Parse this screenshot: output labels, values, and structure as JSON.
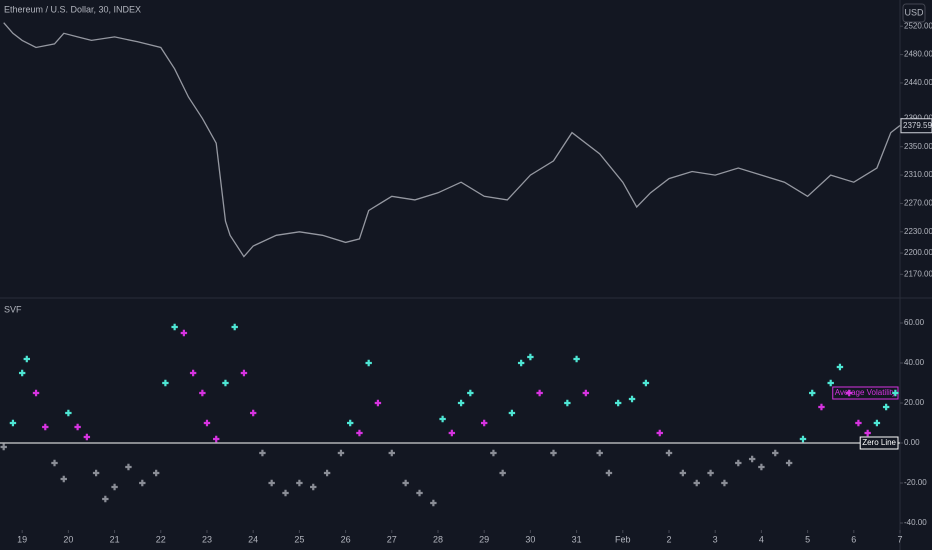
{
  "header": {
    "title": "Ethereum / U.S. Dollar, 30, INDEX",
    "currency": "USD"
  },
  "chart_data": [
    {
      "type": "line",
      "color": "#9598a1",
      "x": [
        -0.4,
        -0.2,
        0,
        0.3,
        0.7,
        0.9,
        1.2,
        1.5,
        2,
        2.5,
        3,
        3.3,
        3.6,
        3.9,
        4.2,
        4.4,
        4.5,
        4.8,
        5,
        5.5,
        6,
        6.5,
        7,
        7.3,
        7.5,
        8,
        8.5,
        9,
        9.5,
        10,
        10.5,
        11,
        11.5,
        11.9,
        12.5,
        13,
        13.3,
        13.6,
        14,
        14.5,
        15,
        15.5,
        16,
        16.5,
        17,
        17.5,
        18,
        18.5,
        18.8,
        19
      ],
      "values": [
        2525,
        2510,
        2500,
        2490,
        2495,
        2510,
        2505,
        2500,
        2505,
        2498,
        2490,
        2460,
        2420,
        2390,
        2355,
        2245,
        2225,
        2195,
        2210,
        2225,
        2230,
        2225,
        2215,
        2220,
        2260,
        2280,
        2275,
        2285,
        2300,
        2280,
        2275,
        2310,
        2330,
        2370,
        2340,
        2300,
        2265,
        2285,
        2305,
        2315,
        2310,
        2320,
        2310,
        2300,
        2280,
        2310,
        2300,
        2320,
        2370,
        2380
      ],
      "last_value": 2379.59,
      "xlim": [
        -0.48,
        19.0
      ],
      "ylim": [
        2138,
        2557
      ],
      "yticks": [
        {
          "value": 2520,
          "label": "2520.00"
        },
        {
          "value": 2480,
          "label": "2480.00"
        },
        {
          "value": 2440,
          "label": "2440.00"
        },
        {
          "value": 2390,
          "label": "2390.00"
        },
        {
          "value": 2350,
          "label": "2350.00"
        },
        {
          "value": 2310,
          "label": "2310.00"
        },
        {
          "value": 2270,
          "label": "2270.00"
        },
        {
          "value": 2230,
          "label": "2230.00"
        },
        {
          "value": 2200,
          "label": "2200.00"
        },
        {
          "value": 2170,
          "label": "2170.00"
        }
      ]
    },
    {
      "type": "scatter",
      "title": "SVF",
      "colors": {
        "rising": "#4ee6d4",
        "falling": "#d633e0",
        "negative": "#8a8d96"
      },
      "x": [
        -0.4,
        -0.2,
        0,
        0.1,
        0.3,
        0.5,
        0.7,
        0.9,
        1.0,
        1.2,
        1.4,
        1.6,
        1.8,
        2.0,
        2.3,
        2.6,
        2.9,
        3.1,
        3.3,
        3.5,
        3.7,
        3.9,
        4.0,
        4.2,
        4.4,
        4.6,
        4.8,
        5.0,
        5.2,
        5.4,
        5.7,
        6.0,
        6.3,
        6.6,
        6.9,
        7.1,
        7.3,
        7.5,
        7.7,
        8.0,
        8.3,
        8.6,
        8.9,
        9.1,
        9.3,
        9.5,
        9.7,
        10.0,
        10.2,
        10.4,
        10.6,
        10.8,
        11.0,
        11.2,
        11.5,
        11.8,
        12.0,
        12.2,
        12.5,
        12.7,
        12.9,
        13.2,
        13.5,
        13.8,
        14.0,
        14.3,
        14.6,
        14.9,
        15.2,
        15.5,
        15.8,
        16.0,
        16.3,
        16.6,
        16.9,
        17.1,
        17.3,
        17.5,
        17.7,
        17.9,
        18.1,
        18.3,
        18.5,
        18.7,
        18.9
      ],
      "values": [
        -2,
        10,
        35,
        42,
        25,
        8,
        -10,
        -18,
        15,
        8,
        3,
        -15,
        -28,
        -22,
        -12,
        -20,
        -15,
        30,
        58,
        55,
        35,
        25,
        10,
        2,
        30,
        58,
        35,
        15,
        -5,
        -20,
        -25,
        -20,
        -22,
        -15,
        -5,
        10,
        5,
        40,
        20,
        -5,
        -20,
        -25,
        -30,
        12,
        5,
        20,
        25,
        10,
        -5,
        -15,
        15,
        40,
        43,
        25,
        -5,
        20,
        42,
        25,
        -5,
        -15,
        20,
        22,
        30,
        5,
        -5,
        -15,
        -20,
        -15,
        -20,
        -10,
        -8,
        -12,
        -5,
        -10,
        2,
        25,
        18,
        30,
        38,
        25,
        10,
        5,
        10,
        18,
        25
      ],
      "hlines": [
        {
          "value": 0,
          "label": "Zero Line",
          "color": "#ffffff"
        },
        {
          "value": 25,
          "label": "Average Volatility",
          "color": "#d633e0"
        }
      ],
      "xlim": [
        -0.48,
        19.0
      ],
      "ylim": [
        -43.5,
        71.5
      ],
      "yticks": [
        {
          "value": 60,
          "label": "60.00"
        },
        {
          "value": 40,
          "label": "40.00"
        },
        {
          "value": 20,
          "label": "20.00"
        },
        {
          "value": 0,
          "label": "0.00"
        },
        {
          "value": -20,
          "label": "-20.00"
        },
        {
          "value": -40,
          "label": "-40.00"
        }
      ],
      "xticks": [
        {
          "value": 0,
          "label": "19"
        },
        {
          "value": 1,
          "label": "20"
        },
        {
          "value": 2,
          "label": "21"
        },
        {
          "value": 3,
          "label": "22"
        },
        {
          "value": 4,
          "label": "23"
        },
        {
          "value": 5,
          "label": "24"
        },
        {
          "value": 6,
          "label": "25"
        },
        {
          "value": 7,
          "label": "26"
        },
        {
          "value": 8,
          "label": "27"
        },
        {
          "value": 9,
          "label": "28"
        },
        {
          "value": 10,
          "label": "29"
        },
        {
          "value": 11,
          "label": "30"
        },
        {
          "value": 12,
          "label": "31"
        },
        {
          "value": 13,
          "label": "Feb"
        },
        {
          "value": 14,
          "label": "2"
        },
        {
          "value": 15,
          "label": "3"
        },
        {
          "value": 16,
          "label": "4"
        },
        {
          "value": 17,
          "label": "5"
        },
        {
          "value": 18,
          "label": "6"
        },
        {
          "value": 19,
          "label": "7"
        }
      ]
    }
  ]
}
